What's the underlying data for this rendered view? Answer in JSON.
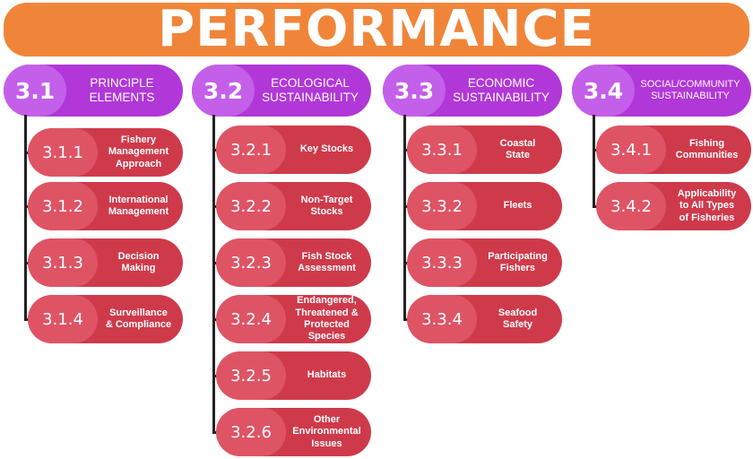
{
  "title": "PERFORMANCE",
  "columns": [
    {
      "code": "3.1",
      "label": "Principle Elements",
      "items": [
        {
          "code": "3.1.1",
          "label": "Fishery\nManagement\nApproach"
        },
        {
          "code": "3.1.2",
          "label": "International\nManagement"
        },
        {
          "code": "3.1.3",
          "label": "Decision\nMaking"
        },
        {
          "code": "3.1.4",
          "label": "Surveillance\n& Compliance"
        }
      ]
    },
    {
      "code": "3.2",
      "label": "Ecological Sustainability",
      "items": [
        {
          "code": "3.2.1",
          "label": "Key Stocks"
        },
        {
          "code": "3.2.2",
          "label": "Non-Target\nStocks"
        },
        {
          "code": "3.2.3",
          "label": "Fish Stock\nAssessment"
        },
        {
          "code": "3.2.4",
          "label": "Endangered,\nThreatened &\nProtected\nSpecies"
        },
        {
          "code": "3.2.5",
          "label": "Habitats"
        },
        {
          "code": "3.2.6",
          "label": "Other\nEnvironmental\nIssues"
        }
      ]
    },
    {
      "code": "3.3",
      "label": "Economic Sustainability",
      "items": [
        {
          "code": "3.3.1",
          "label": "Coastal\nState"
        },
        {
          "code": "3.3.2",
          "label": "Fleets"
        },
        {
          "code": "3.3.3",
          "label": "Participating\nFishers"
        },
        {
          "code": "3.3.4",
          "label": "Seafood\nSafety"
        }
      ]
    },
    {
      "code": "3.4",
      "label": "Social/Community Sustainability",
      "items": [
        {
          "code": "3.4.1",
          "label": "Fishing\nCommunities"
        },
        {
          "code": "3.4.2",
          "label": "Applicability\nto All Types\nof Fisheries"
        }
      ]
    }
  ],
  "colors": {
    "banner": "#f08539",
    "header_dark": "#b137d9",
    "header_light": "#c35fe9",
    "item_dark": "#cf3a4b",
    "item_light": "#de5465"
  }
}
